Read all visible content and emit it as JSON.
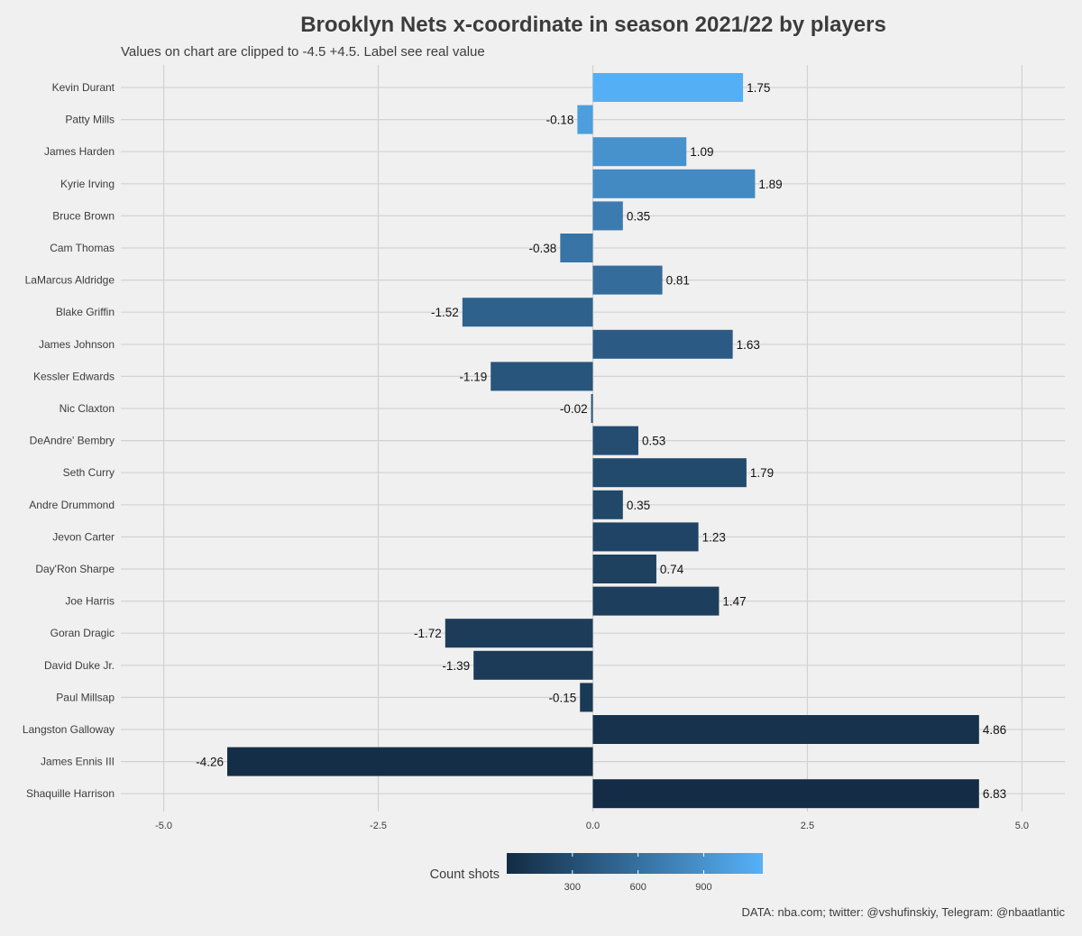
{
  "title": "Brooklyn Nets x-coordinate in season 2021/22 by players",
  "subtitle": "Values on chart are clipped to -4.5 +4.5. Label see real value",
  "caption": "DATA: nba.com; twitter: @vshufinskiy, Telegram: @nbaatlantic",
  "colors": {
    "background": "#f0f0f0",
    "grid": "#d2d2d2",
    "gradient_low": "#132b43",
    "gradient_high": "#56b1f7"
  },
  "chart_data": {
    "type": "bar",
    "orientation": "horizontal",
    "categories": [
      "Kevin Durant",
      "Patty Mills",
      "James Harden",
      "Kyrie Irving",
      "Bruce Brown",
      "Cam Thomas",
      "LaMarcus Aldridge",
      "Blake Griffin",
      "James Johnson",
      "Kessler Edwards",
      "Nic Claxton",
      "DeAndre' Bembry",
      "Seth Curry",
      "Andre Drummond",
      "Jevon Carter",
      "Day'Ron Sharpe",
      "Joe Harris",
      "Goran Dragic",
      "David Duke Jr.",
      "Paul Millsap",
      "Langston Galloway",
      "James Ennis III",
      "Shaquille Harrison"
    ],
    "values": [
      1.75,
      -0.18,
      1.09,
      1.89,
      0.35,
      -0.38,
      0.81,
      -1.52,
      1.63,
      -1.19,
      -0.02,
      0.53,
      1.79,
      0.35,
      1.23,
      0.74,
      1.47,
      -1.72,
      -1.39,
      -0.15,
      4.86,
      -4.26,
      6.83
    ],
    "data_labels": [
      "1.75",
      "-0.18",
      "1.09",
      "1.89",
      "0.35",
      "-0.38",
      "0.81",
      "-1.52",
      "1.63",
      "-1.19",
      "-0.02",
      "0.53",
      "1.79",
      "0.35",
      "1.23",
      "0.74",
      "1.47",
      "-1.72",
      "-1.39",
      "-0.15",
      "4.86",
      "-4.26",
      "6.83"
    ],
    "clip": [
      -4.5,
      4.5
    ],
    "count_shots": [
      1150,
      1000,
      900,
      830,
      700,
      640,
      580,
      480,
      420,
      370,
      330,
      300,
      270,
      250,
      220,
      190,
      170,
      150,
      140,
      120,
      60,
      30,
      10
    ],
    "xlim": [
      -5.5,
      5.5
    ],
    "xticks": [
      -5.0,
      -2.5,
      0.0,
      2.5,
      5.0
    ],
    "xtick_labels": [
      "-5.0",
      "-2.5",
      "0.0",
      "2.5",
      "5.0"
    ],
    "grid": true,
    "legend": {
      "title": "Count shots",
      "position": "bottom",
      "range": [
        0,
        1170
      ],
      "ticks": [
        300,
        600,
        900
      ],
      "tick_labels": [
        "300",
        "600",
        "900"
      ]
    }
  }
}
